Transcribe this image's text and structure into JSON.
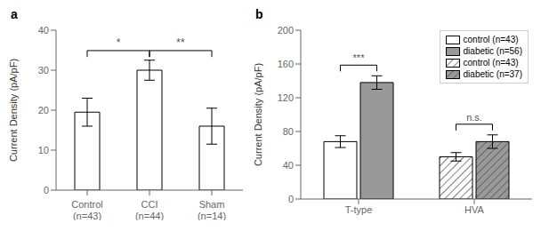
{
  "chart_data": [
    {
      "type": "bar",
      "title": "a",
      "categories": [
        "Control\n(n=43)",
        "CCI\n(n=44)",
        "Sham\n(n=14)"
      ],
      "values": [
        19.5,
        30.0,
        16.0
      ],
      "errors": [
        3.5,
        2.5,
        4.5
      ],
      "y_label": "Current Density (pA/pF)",
      "ylim": [
        0,
        40
      ],
      "yticks": [
        0,
        10,
        20,
        30,
        40
      ],
      "color": "#ffffff",
      "grid": false,
      "annotations": [
        {
          "text": "*",
          "between": [
            "Control\n(n=43)",
            "CCI\n(n=44)"
          ]
        },
        {
          "text": "**",
          "between": [
            "CCI\n(n=44)",
            "Sham\n(n=14)"
          ]
        }
      ]
    },
    {
      "type": "bar",
      "title": "b",
      "categories": [
        "T-type",
        "HVA"
      ],
      "series": [
        {
          "name": "control (n=43)",
          "color": "#ffffff",
          "values": [
            68,
            null
          ],
          "errors": [
            7,
            null
          ]
        },
        {
          "name": "diabetic (n=56)",
          "color": "#999999",
          "values": [
            138,
            null
          ],
          "errors": [
            8,
            null
          ]
        },
        {
          "name": "control (n=43)",
          "color": "#ffffff",
          "values": [
            null,
            50
          ],
          "errors": [
            null,
            5
          ]
        },
        {
          "name": "diabetic (n=37)",
          "color": "#999999",
          "values": [
            null,
            68
          ],
          "errors": [
            null,
            8
          ]
        }
      ],
      "y_label": "Current Density (pA/pF)",
      "ylim": [
        0,
        200
      ],
      "yticks": [
        0,
        40,
        80,
        120,
        160,
        200
      ],
      "grid": false,
      "legend": "upper right",
      "annotations": [
        {
          "text": "***",
          "category": "T-type"
        },
        {
          "text": "n.s.",
          "category": "HVA"
        }
      ]
    }
  ]
}
